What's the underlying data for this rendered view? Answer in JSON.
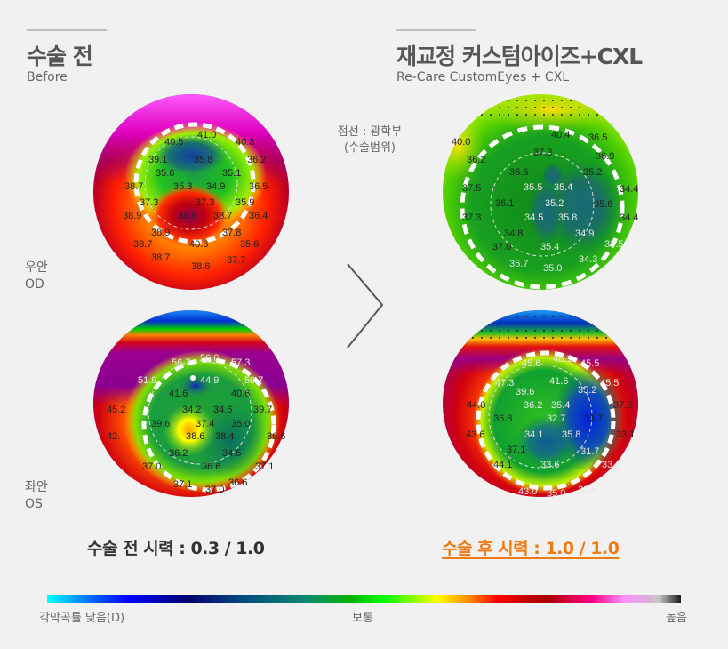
{
  "before": {
    "title": "수술 전",
    "subtitle": "Before",
    "vision": "수술 전 시력 : 0.3 / 1.0"
  },
  "after": {
    "title": "재교정 커스텀아이즈+CXL",
    "subtitle": "Re-Care CustomEyes + CXL",
    "vision": "수술 후 시력 : 1.0 / 1.0"
  },
  "eyes": {
    "od": {
      "label_ko": "우안",
      "label_en": "OD"
    },
    "os": {
      "label_ko": "좌안",
      "label_en": "OS"
    }
  },
  "note": {
    "line1": "점선 : 광학부",
    "line2": "(수술범위)"
  },
  "scale": {
    "low": "각막곡률 낮음(D)",
    "mid": "보통",
    "high": "높음"
  },
  "colors": {
    "accent": "#f07a12",
    "title": "#555555",
    "background": "#f1f1f1"
  },
  "maps": {
    "before_od": {
      "readings": [
        "40.5",
        "41.0",
        "40.3",
        "39.1",
        "35.8",
        "36.2",
        "35.6",
        "35.1",
        "38.7",
        "35.3",
        "34.9",
        "36.5",
        "37.3",
        "37.3",
        "35.9",
        "38.9",
        "38.8",
        "38.7",
        "36.4",
        "38.9",
        "37.8",
        "38.7",
        "40.3",
        "35.6",
        "38.7",
        "38.6",
        "37.7"
      ]
    },
    "before_os": {
      "readings": [
        "56.7",
        "56.6",
        "57.3",
        "51.9",
        "44.9",
        "50.7",
        "41.6",
        "40.6",
        "45.2",
        "34.2",
        "34.6",
        "39.7",
        "39.6",
        "37.4",
        "35.0",
        "42.",
        "38.6",
        "38.4",
        "36.6",
        "36.2",
        "34.5",
        "37.0",
        "36.6",
        "37.1",
        "37.1",
        "37.0",
        "36.6"
      ]
    },
    "after_od": {
      "readings": [
        "40.0",
        "40.4",
        "36.5",
        "36.2",
        "37.3",
        "36.9",
        "36.6",
        "35.2",
        "37.5",
        "35.5",
        "35.4",
        "34.4",
        "36.1",
        "35.2",
        "35.6",
        "37.3",
        "34.5",
        "35.8",
        "34.4",
        "34.8",
        "34.9",
        "37.0",
        "35.4",
        "33.5",
        "35.7",
        "35.0",
        "34.3"
      ]
    },
    "after_os": {
      "readings": [
        "45.6",
        "48.1",
        "45.5",
        "47.3",
        "41.6",
        "45.5",
        "39.6",
        "35.2",
        "44.0",
        "36.2",
        "35.4",
        "37.5",
        "36.8",
        "32.7",
        "31.7",
        "43.6",
        "34.1",
        "35.8",
        "33.1",
        "37.1",
        "31.7",
        "44.1",
        "33.6",
        "33.1",
        "43.0",
        "35.0",
        "32.6"
      ]
    }
  }
}
